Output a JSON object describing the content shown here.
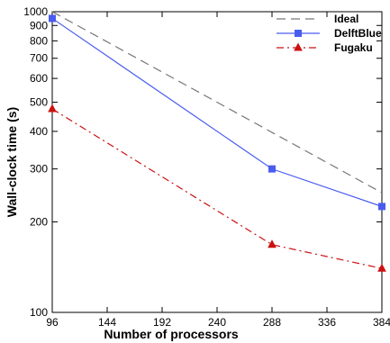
{
  "chart_data": {
    "type": "line",
    "xlabel": "Number of processors",
    "ylabel": "Wall-clock time (s)",
    "xlim": [
      96,
      384
    ],
    "ylim": [
      100,
      1000
    ],
    "yscale": "log",
    "xticks": [
      96,
      144,
      192,
      240,
      288,
      336,
      384
    ],
    "yticks": [
      100,
      200,
      300,
      400,
      500,
      600,
      700,
      800,
      900,
      1000
    ],
    "legend_position": "top-right",
    "grid": false,
    "series": [
      {
        "name": "Ideal",
        "color": "#777777",
        "style": "dashed",
        "marker": "none",
        "x": [
          96,
          384
        ],
        "y": [
          1000,
          250
        ]
      },
      {
        "name": "DelftBlue",
        "color": "#4a5cf0",
        "style": "solid",
        "marker": "square",
        "x": [
          96,
          288,
          384
        ],
        "y": [
          950,
          300,
          225
        ]
      },
      {
        "name": "Fugaku",
        "color": "#cc1111",
        "style": "dashdot",
        "marker": "triangle",
        "x": [
          96,
          288,
          384
        ],
        "y": [
          475,
          168,
          140
        ]
      }
    ]
  }
}
